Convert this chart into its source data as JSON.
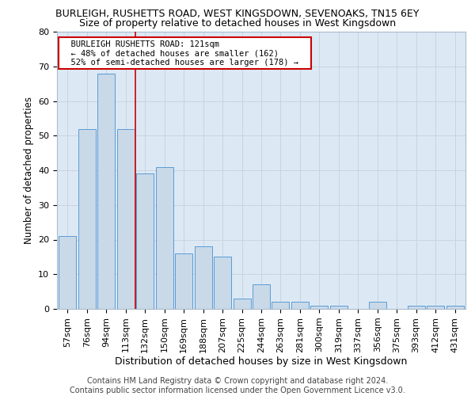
{
  "title": "BURLEIGH, RUSHETTS ROAD, WEST KINGSDOWN, SEVENOAKS, TN15 6EY",
  "subtitle": "Size of property relative to detached houses in West Kingsdown",
  "xlabel": "Distribution of detached houses by size in West Kingsdown",
  "ylabel": "Number of detached properties",
  "categories": [
    "57sqm",
    "76sqm",
    "94sqm",
    "113sqm",
    "132sqm",
    "150sqm",
    "169sqm",
    "188sqm",
    "207sqm",
    "225sqm",
    "244sqm",
    "263sqm",
    "281sqm",
    "300sqm",
    "319sqm",
    "337sqm",
    "356sqm",
    "375sqm",
    "393sqm",
    "412sqm",
    "431sqm"
  ],
  "values": [
    21,
    52,
    68,
    52,
    39,
    41,
    16,
    18,
    15,
    3,
    7,
    2,
    2,
    1,
    1,
    0,
    2,
    0,
    1,
    1,
    1
  ],
  "bar_color": "#c9d9e8",
  "bar_edge_color": "#5b9bd5",
  "grid_color": "#c8d4e0",
  "background_color": "#dce9f5",
  "red_line_x": 3.5,
  "annotation_text": "  BURLEIGH RUSHETTS ROAD: 121sqm  \n  ← 48% of detached houses are smaller (162)  \n  52% of semi-detached houses are larger (178) →  ",
  "annotation_box_color": "#ffffff",
  "annotation_box_edge": "#cc0000",
  "red_line_color": "#cc0000",
  "ylim": [
    0,
    80
  ],
  "yticks": [
    0,
    10,
    20,
    30,
    40,
    50,
    60,
    70,
    80
  ],
  "footer_text": "Contains HM Land Registry data © Crown copyright and database right 2024.\nContains public sector information licensed under the Open Government Licence v3.0.",
  "title_fontsize": 9,
  "subtitle_fontsize": 9,
  "xlabel_fontsize": 9,
  "ylabel_fontsize": 8.5,
  "tick_fontsize": 8,
  "annotation_fontsize": 7.5,
  "footer_fontsize": 7
}
